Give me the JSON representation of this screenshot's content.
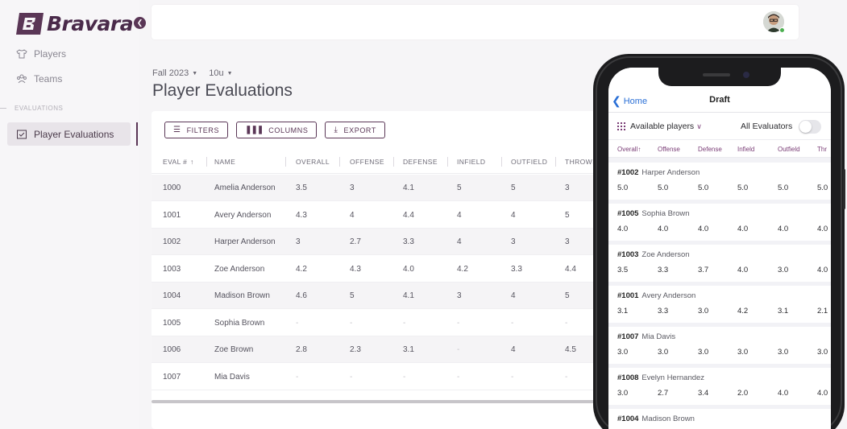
{
  "brand": {
    "name": "Bravara",
    "color": "#5a3656"
  },
  "sidebar": {
    "items": [
      {
        "label": "Players",
        "icon": "shirt-icon"
      },
      {
        "label": "Teams",
        "icon": "group-icon"
      }
    ],
    "section_label": "EVALUATIONS",
    "active_item": {
      "label": "Player Evaluations",
      "icon": "clipboard-icon"
    }
  },
  "header": {
    "season": "Fall 2023",
    "division": "10u",
    "title": "Player Evaluations"
  },
  "toolbar": {
    "filters_label": "FILTERS",
    "columns_label": "COLUMNS",
    "export_label": "EXPORT"
  },
  "table": {
    "columns": [
      "EVAL #",
      "NAME",
      "OVERALL",
      "OFFENSE",
      "DEFENSE",
      "INFIELD",
      "OUTFIELD",
      "THROWI"
    ],
    "sort_indicator": "↑",
    "rows": [
      [
        "1000",
        "Amelia Anderson",
        "3.5",
        "3",
        "4.1",
        "5",
        "5",
        "3"
      ],
      [
        "1001",
        "Avery Anderson",
        "4.3",
        "4",
        "4.4",
        "4",
        "4",
        "5"
      ],
      [
        "1002",
        "Harper Anderson",
        "3",
        "2.7",
        "3.3",
        "4",
        "3",
        "3"
      ],
      [
        "1003",
        "Zoe Anderson",
        "4.2",
        "4.3",
        "4.0",
        "4.2",
        "3.3",
        "4.4"
      ],
      [
        "1004",
        "Madison Brown",
        "4.6",
        "5",
        "4.1",
        "3",
        "4",
        "5"
      ],
      [
        "1005",
        "Sophia Brown",
        "-",
        "-",
        "-",
        "-",
        "-",
        "-"
      ],
      [
        "1006",
        "Zoe Brown",
        "2.8",
        "2.3",
        "3.1",
        "-",
        "4",
        "4.5"
      ],
      [
        "1007",
        "Mia Davis",
        "-",
        "-",
        "-",
        "-",
        "-",
        "-"
      ]
    ]
  },
  "mobile": {
    "back_label": "Home",
    "title": "Draft",
    "filter_label": "Available players",
    "all_evaluators_label": "All Evaluators",
    "all_evaluators_on": false,
    "columns": [
      "Overall↑",
      "Offense",
      "Defense",
      "Infield",
      "Outfield",
      "Thr"
    ],
    "players": [
      {
        "id": "#1002",
        "name": "Harper Anderson",
        "values": [
          "5.0",
          "5.0",
          "5.0",
          "5.0",
          "5.0",
          "5.0"
        ]
      },
      {
        "id": "#1005",
        "name": "Sophia Brown",
        "values": [
          "4.0",
          "4.0",
          "4.0",
          "4.0",
          "4.0",
          "4.0"
        ]
      },
      {
        "id": "#1003",
        "name": "Zoe Anderson",
        "values": [
          "3.5",
          "3.3",
          "3.7",
          "4.0",
          "3.0",
          "4.0"
        ]
      },
      {
        "id": "#1001",
        "name": "Avery Anderson",
        "values": [
          "3.1",
          "3.3",
          "3.0",
          "4.2",
          "3.1",
          "2.1"
        ]
      },
      {
        "id": "#1007",
        "name": "Mia Davis",
        "values": [
          "3.0",
          "3.0",
          "3.0",
          "3.0",
          "3.0",
          "3.0"
        ]
      },
      {
        "id": "#1008",
        "name": "Evelyn Hernandez",
        "values": [
          "3.0",
          "2.7",
          "3.4",
          "2.0",
          "4.0",
          "4.0"
        ]
      },
      {
        "id": "#1004",
        "name": "Madison Brown",
        "values": []
      }
    ]
  }
}
